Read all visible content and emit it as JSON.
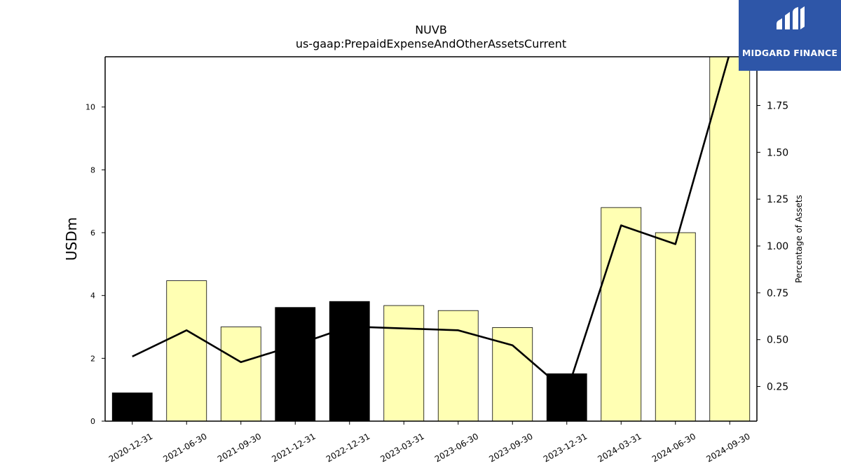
{
  "chart_data": {
    "type": "bar",
    "title": "NUVB",
    "subtitle": "us-gaap:PrepaidExpenseAndOtherAssetsCurrent",
    "ylabel": "USDm",
    "y2label": "Percentage of Assets",
    "categories": [
      "2020-12-31",
      "2021-06-30",
      "2021-09-30",
      "2021-12-31",
      "2022-12-31",
      "2023-03-31",
      "2023-06-30",
      "2023-09-30",
      "2023-12-31",
      "2024-03-31",
      "2024-06-30",
      "2024-09-30"
    ],
    "series": [
      {
        "values": [
          0.9,
          4.47,
          3.0,
          3.62,
          3.81,
          3.68,
          3.52,
          2.98,
          1.51,
          6.8,
          6.0,
          11.8
        ],
        "bar_colors": [
          "#000000",
          "#ffffb3",
          "#ffffb3",
          "#000000",
          "#000000",
          "#ffffb3",
          "#ffffb3",
          "#ffffb3",
          "#000000",
          "#ffffb3",
          "#ffffb3",
          "#ffffb3"
        ]
      },
      {
        "axis": "right",
        "type": "line",
        "values": [
          0.41,
          0.55,
          0.38,
          0.47,
          0.57,
          0.56,
          0.55,
          0.47,
          0.22,
          1.11,
          1.01,
          2.03
        ]
      }
    ],
    "ylim": [
      0,
      11.6
    ],
    "y2lim": [
      0.065,
      2.01
    ],
    "yticks": [
      0,
      2,
      4,
      6,
      8,
      10
    ],
    "y2ticks": [
      "0.25",
      "0.50",
      "0.75",
      "1.00",
      "1.25",
      "1.50",
      "1.75"
    ],
    "grid": false,
    "legend": "none"
  },
  "logo": {
    "text": "MIDGARD FINANCE",
    "color": "#2e56a8"
  }
}
